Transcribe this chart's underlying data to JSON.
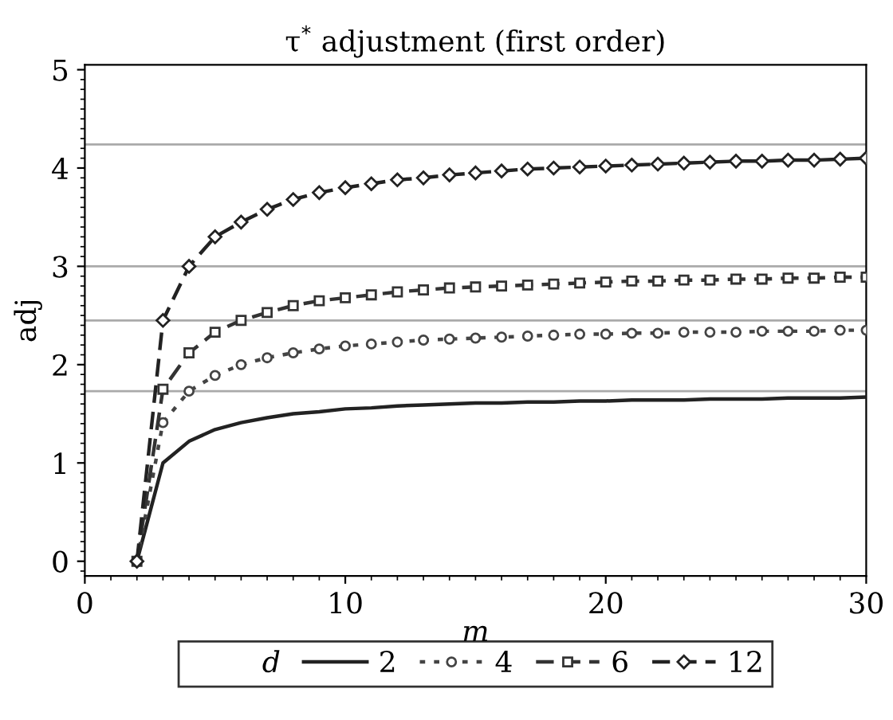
{
  "chart_data": {
    "type": "line",
    "title": "τ$^{*}$ adjustment (first order)",
    "xlabel": "m",
    "ylabel": "adj",
    "legend_title": "d",
    "x": [
      2,
      3,
      4,
      5,
      6,
      7,
      8,
      9,
      10,
      11,
      12,
      13,
      14,
      15,
      16,
      17,
      18,
      19,
      20,
      21,
      22,
      23,
      24,
      25,
      26,
      27,
      28,
      29,
      30
    ],
    "series": [
      {
        "name": "2",
        "color": "#222222",
        "marker": "none",
        "line_style": "solid",
        "values": [
          0,
          1.0,
          1.22,
          1.34,
          1.41,
          1.46,
          1.5,
          1.52,
          1.55,
          1.56,
          1.58,
          1.59,
          1.6,
          1.61,
          1.61,
          1.62,
          1.62,
          1.63,
          1.63,
          1.64,
          1.64,
          1.64,
          1.65,
          1.65,
          1.65,
          1.66,
          1.66,
          1.66,
          1.67
        ]
      },
      {
        "name": "4",
        "color": "#444444",
        "marker": "circle",
        "line_style": "dotted",
        "values": [
          0,
          1.41,
          1.73,
          1.89,
          2.0,
          2.07,
          2.12,
          2.16,
          2.19,
          2.21,
          2.23,
          2.25,
          2.26,
          2.27,
          2.28,
          2.29,
          2.3,
          2.31,
          2.31,
          2.32,
          2.32,
          2.33,
          2.33,
          2.33,
          2.34,
          2.34,
          2.34,
          2.35,
          2.35
        ]
      },
      {
        "name": "6",
        "color": "#333333",
        "marker": "square",
        "line_style": "dashed",
        "values": [
          0,
          1.75,
          2.12,
          2.33,
          2.45,
          2.53,
          2.6,
          2.65,
          2.68,
          2.71,
          2.74,
          2.76,
          2.78,
          2.79,
          2.8,
          2.81,
          2.82,
          2.83,
          2.84,
          2.85,
          2.85,
          2.86,
          2.86,
          2.87,
          2.87,
          2.88,
          2.88,
          2.89,
          2.89
        ]
      },
      {
        "name": "12",
        "color": "#222222",
        "marker": "diamond",
        "line_style": "dashed",
        "values": [
          0,
          2.45,
          3.0,
          3.3,
          3.45,
          3.58,
          3.68,
          3.75,
          3.8,
          3.84,
          3.88,
          3.9,
          3.93,
          3.95,
          3.97,
          3.99,
          4.0,
          4.01,
          4.02,
          4.03,
          4.04,
          4.05,
          4.06,
          4.07,
          4.07,
          4.08,
          4.08,
          4.09,
          4.1
        ]
      }
    ],
    "ref_lines": [
      {
        "axis": "y",
        "value": 1.73,
        "color": "#aaaaaa"
      },
      {
        "axis": "y",
        "value": 2.45,
        "color": "#aaaaaa"
      },
      {
        "axis": "y",
        "value": 3.0,
        "color": "#aaaaaa"
      },
      {
        "axis": "y",
        "value": 4.24,
        "color": "#aaaaaa"
      }
    ],
    "xlim": [
      0,
      30
    ],
    "xticks": [
      0,
      10,
      20,
      30
    ],
    "ylim": [
      -0.15,
      5.05
    ],
    "yticks": [
      0,
      1,
      2,
      3,
      4,
      5
    ],
    "grid": false,
    "legend": "bottom"
  }
}
